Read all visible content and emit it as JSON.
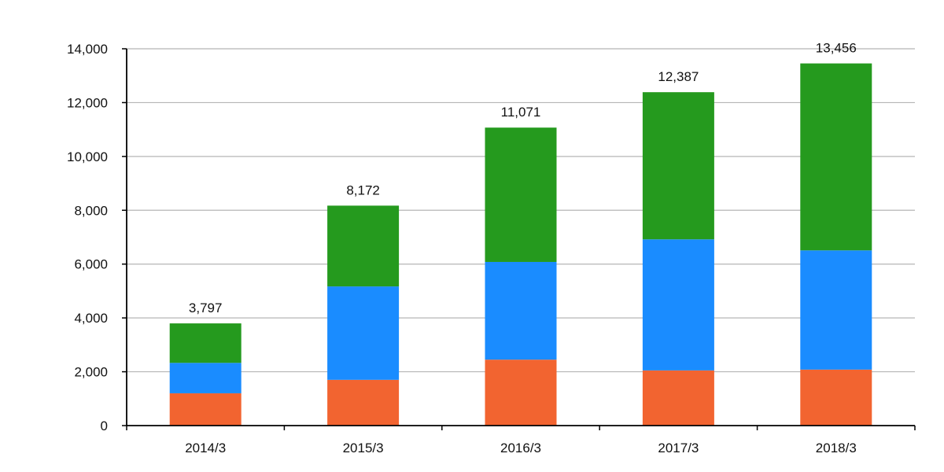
{
  "chart_data": {
    "type": "bar",
    "stacked": true,
    "categories": [
      "2014/3",
      "2015/3",
      "2016/3",
      "2017/3",
      "2018/3"
    ],
    "series": [
      {
        "color": "#F26430",
        "values": [
          1200,
          1700,
          2450,
          2050,
          2080
        ]
      },
      {
        "color": "#1A8CFF",
        "values": [
          1130,
          3470,
          3630,
          4870,
          4430
        ]
      },
      {
        "color": "#259A1E",
        "values": [
          1467,
          3002,
          4991,
          5467,
          6946
        ]
      }
    ],
    "totals": [
      3797,
      8172,
      11071,
      12387,
      13456
    ],
    "total_labels": [
      "3,797",
      "8,172",
      "11,071",
      "12,387",
      "13,456"
    ],
    "ylim": [
      0,
      14000
    ],
    "yticks": [
      0,
      2000,
      4000,
      6000,
      8000,
      10000,
      12000,
      14000
    ],
    "ytick_labels": [
      "0",
      "2,000",
      "4,000",
      "6,000",
      "8,000",
      "10,000",
      "12,000",
      "14,000"
    ],
    "grid": true,
    "legend": "none",
    "title": "",
    "xlabel": "",
    "ylabel": ""
  }
}
